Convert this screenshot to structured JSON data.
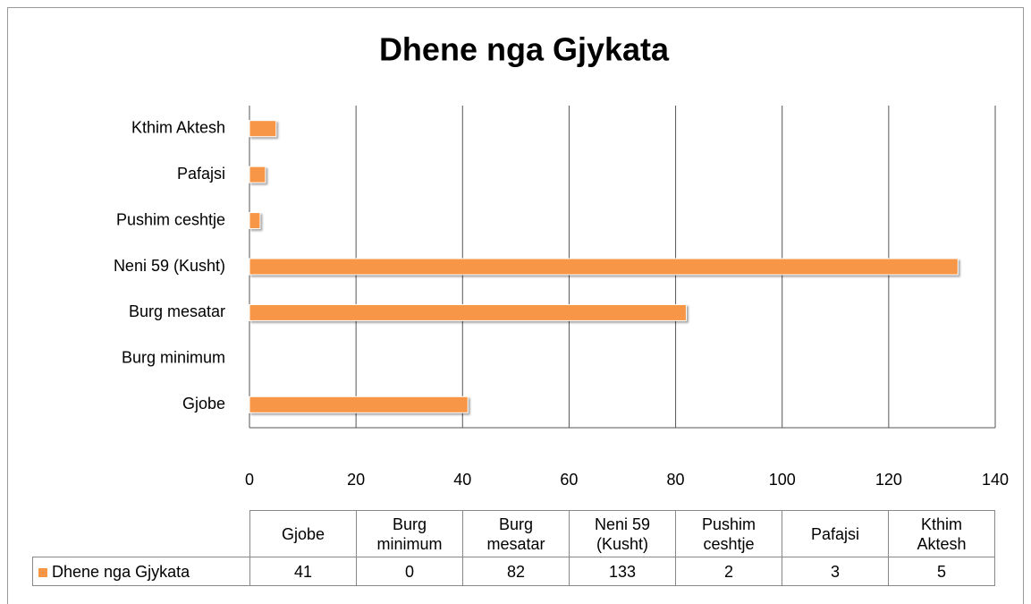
{
  "chart_data": {
    "type": "bar",
    "orientation": "horizontal",
    "title": "Dhene nga Gjykata",
    "categories": [
      "Gjobe",
      "Burg minimum",
      "Burg mesatar",
      "Neni 59 (Kusht)",
      "Pushim ceshtje",
      "Pafajsi",
      "Kthim Aktesh"
    ],
    "series": [
      {
        "name": "Dhene nga Gjykata",
        "color": "#f79646",
        "values": [
          41,
          0,
          82,
          133,
          2,
          3,
          5
        ]
      }
    ],
    "xlim": [
      0,
      140
    ],
    "xticks": [
      0,
      20,
      40,
      60,
      80,
      100,
      120,
      140
    ],
    "grid": true,
    "data_table": true
  }
}
